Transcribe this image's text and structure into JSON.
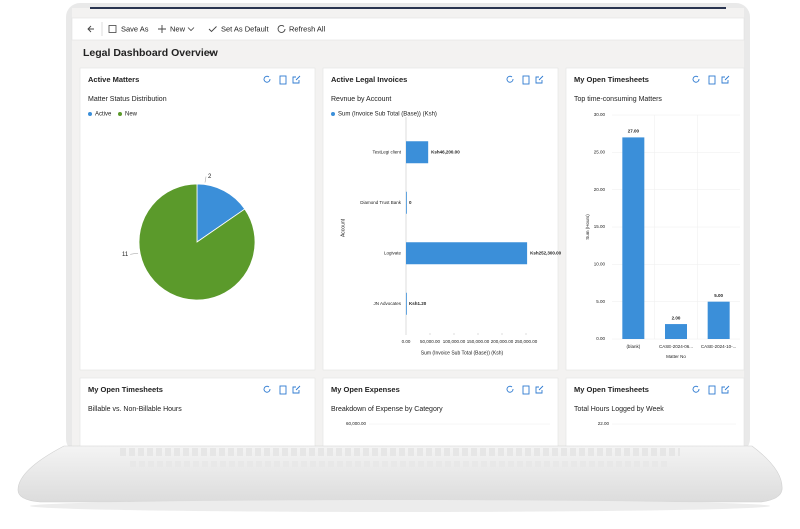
{
  "toolbar": [
    "Save As",
    "New",
    "Set As Default",
    "Refresh All"
  ],
  "title": "Legal Dashboard Overview",
  "panels": [
    {
      "title": "Active Matters",
      "subtitle": "Matter Status Distribution",
      "chart": {
        "type": "pie",
        "categories": [
          "Active",
          "New"
        ],
        "values": [
          2,
          11
        ],
        "colors": [
          "#3b8fd9",
          "#5b9a2b"
        ]
      }
    },
    {
      "title": "Active Legal Invoices",
      "subtitle": "Revnue by Account",
      "chart": {
        "type": "hbar",
        "series_name": "Sum (Invoice Sub Total (Base)) (Ksh)",
        "color": "#3b8fd9",
        "categories": [
          "TestLegi client",
          "Diamond Trust Bank",
          "Logivate",
          "JN Advocates"
        ],
        "values": [
          46200,
          0,
          252300,
          1.2
        ],
        "value_labels": [
          "Ksh46,200.00",
          "0",
          "Ksh252,300.00",
          "Ksh1.20"
        ],
        "xlim": [
          0,
          300000
        ],
        "xticks": [
          {
            "value": 0,
            "label": "0.00"
          },
          {
            "value": 50000,
            "label": "50,000.00"
          },
          {
            "value": 100000,
            "label": "100,000.00"
          },
          {
            "value": 150000,
            "label": "150,000.00"
          },
          {
            "value": 200000,
            "label": "200,000.00"
          },
          {
            "value": 250000,
            "label": "250,000.00"
          }
        ],
        "xlabel": "Sum (Invoice Sub Total (Base)) (Ksh)",
        "ylabel": "Account"
      }
    },
    {
      "title": "My Open Timesheets",
      "subtitle": "Top time-consuming Matters",
      "chart": {
        "type": "bar",
        "color": "#3b8fd9",
        "categories": [
          "(blank)",
          "CASE-2024-06...",
          "CASE-2024-10-..."
        ],
        "values": [
          27,
          2,
          5
        ],
        "value_labels": [
          "27.00",
          "2.00",
          "5.00"
        ],
        "ylim": [
          0,
          30
        ],
        "yticks": [
          {
            "value": 0,
            "label": "0.00"
          },
          {
            "value": 5,
            "label": "5.00"
          },
          {
            "value": 10,
            "label": "10.00"
          },
          {
            "value": 15,
            "label": "15.00"
          },
          {
            "value": 20,
            "label": "20.00"
          },
          {
            "value": 25,
            "label": "25.00"
          },
          {
            "value": 30,
            "label": "30.00"
          }
        ],
        "xlabel": "Matter No",
        "ylabel": "Sum (Hours)"
      }
    },
    {
      "title": "My Open Timesheets",
      "subtitle": "Billable vs. Non-Billable Hours"
    },
    {
      "title": "My Open Expenses",
      "subtitle": "Breakdown of Expense by Category",
      "chart": {
        "type": "partial",
        "yticks": [
          {
            "value": 60000,
            "label": "60,000.00"
          }
        ]
      }
    },
    {
      "title": "My Open Timesheets",
      "subtitle": "Total Hours Logged by Week",
      "chart": {
        "type": "partial",
        "yticks": [
          {
            "value": 22,
            "label": "22.00"
          }
        ]
      }
    }
  ]
}
